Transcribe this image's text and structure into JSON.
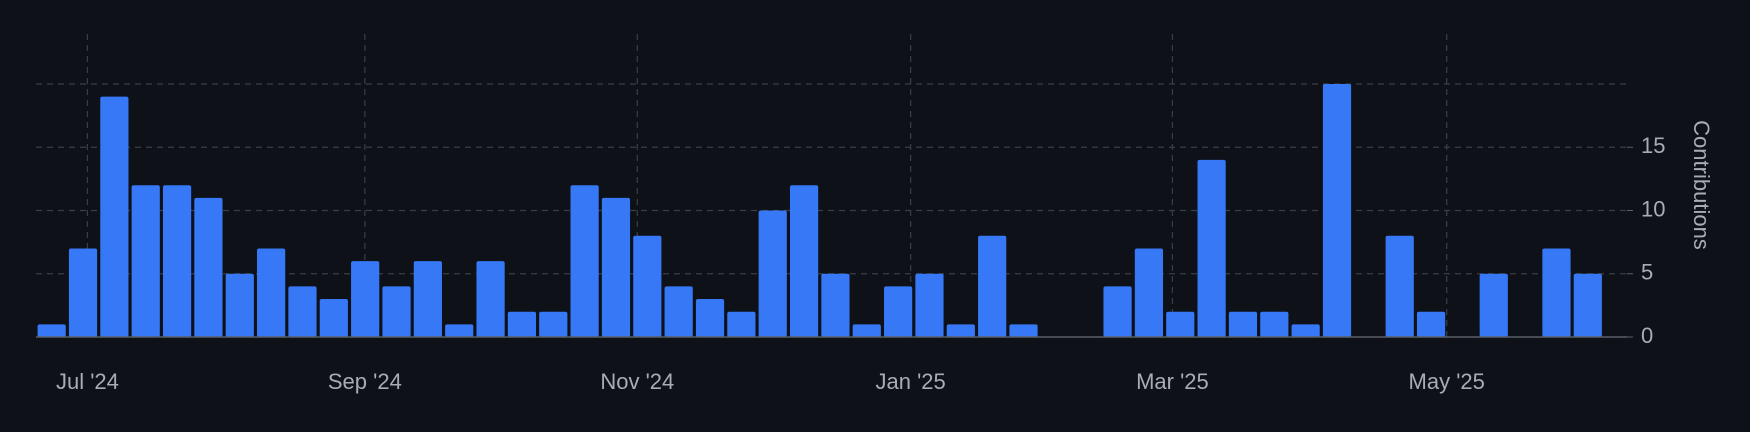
{
  "chart_data": {
    "type": "bar",
    "y_label": "Contributions",
    "color": "#3778f6",
    "x": [
      0,
      1,
      2,
      3,
      4,
      5,
      6,
      7,
      8,
      9,
      10,
      11,
      12,
      13,
      14,
      15,
      16,
      17,
      18,
      19,
      20,
      21,
      22,
      23,
      24,
      25,
      26,
      27,
      28,
      29,
      30,
      31,
      32,
      33,
      34,
      35,
      36,
      37,
      38,
      39,
      40,
      41,
      42,
      43,
      44,
      45,
      46,
      47,
      48,
      49
    ],
    "values": [
      1,
      7,
      19,
      12,
      12,
      11,
      5,
      7,
      4,
      3,
      6,
      4,
      6,
      1,
      6,
      2,
      2,
      12,
      11,
      8,
      4,
      3,
      2,
      10,
      12,
      5,
      1,
      4,
      5,
      1,
      8,
      1,
      0,
      0,
      4,
      7,
      2,
      14,
      2,
      2,
      1,
      20,
      0,
      8,
      2,
      0,
      5,
      0,
      7,
      5
    ],
    "xlim": [
      -0.5,
      50.25
    ],
    "xticks": [
      {
        "value": 1.14,
        "label": "Jul '24"
      },
      {
        "value": 9.99,
        "label": "Sep '24"
      },
      {
        "value": 18.68,
        "label": "Nov '24"
      },
      {
        "value": 27.4,
        "label": "Jan '25"
      },
      {
        "value": 35.75,
        "label": "Mar '25"
      },
      {
        "value": 44.5,
        "label": "May '25"
      }
    ],
    "ylim": [
      0,
      20
    ],
    "yticks": [
      0,
      5,
      10,
      15
    ],
    "ygrid": [
      5,
      10,
      15,
      20
    ],
    "grid": true
  }
}
